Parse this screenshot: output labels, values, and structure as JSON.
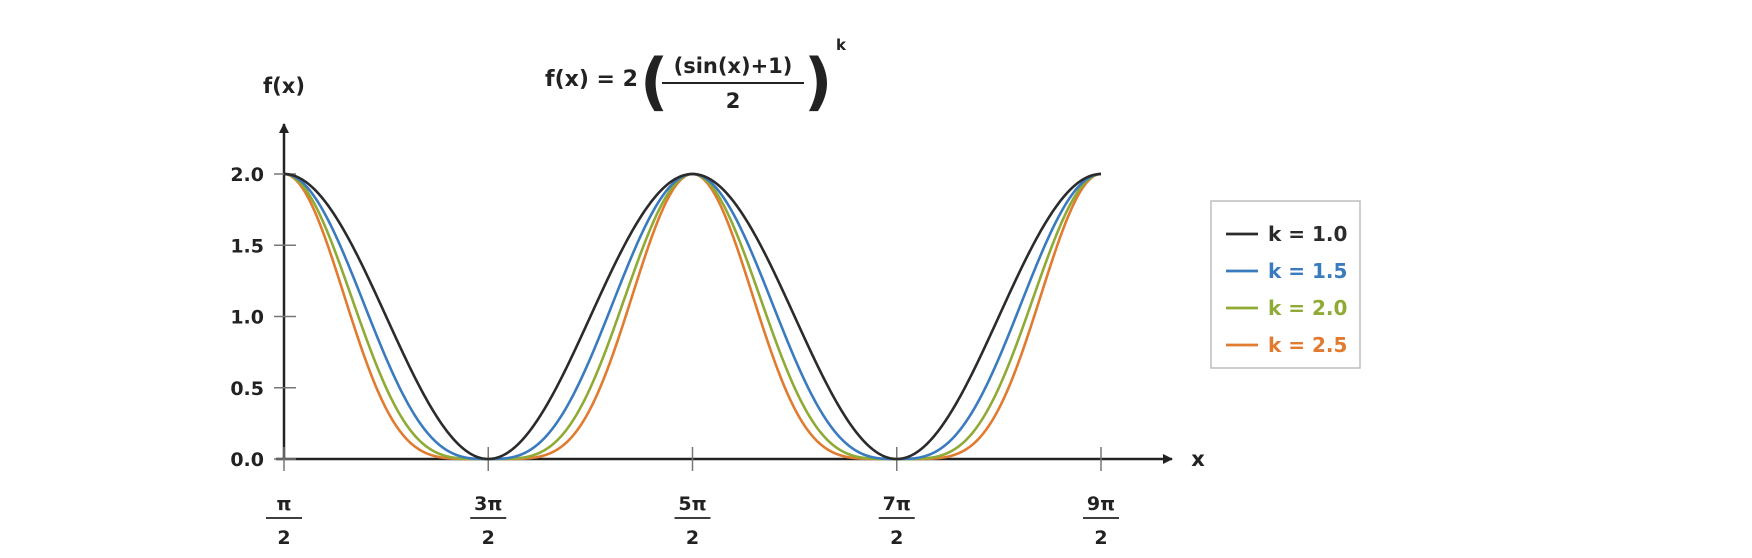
{
  "chart_data": {
    "type": "line",
    "title": {
      "lhs": "f(x) = 2",
      "numerator": "(sin(x)+1)",
      "denominator": "2",
      "exponent": "k"
    },
    "ylabel": "f(x)",
    "xlabel": "x",
    "function": "2*((sin(x)+1)/2)^k",
    "xlim_in_pi": [
      0.5,
      4.5
    ],
    "ylim": [
      0,
      2
    ],
    "x_ticks": [
      {
        "value_in_pi": 0.5,
        "num": "π",
        "den": "2"
      },
      {
        "value_in_pi": 1.5,
        "num": "3π",
        "den": "2"
      },
      {
        "value_in_pi": 2.5,
        "num": "5π",
        "den": "2"
      },
      {
        "value_in_pi": 3.5,
        "num": "7π",
        "den": "2"
      },
      {
        "value_in_pi": 4.5,
        "num": "9π",
        "den": "2"
      }
    ],
    "y_ticks": [
      {
        "value": 0.0,
        "label": "0.0"
      },
      {
        "value": 0.5,
        "label": "0.5"
      },
      {
        "value": 1.0,
        "label": "1.0"
      },
      {
        "value": 1.5,
        "label": "1.5"
      },
      {
        "value": 2.0,
        "label": "2.0"
      }
    ],
    "series": [
      {
        "name": "k = 1.0",
        "k": 1.0,
        "color": "#2b2b2b"
      },
      {
        "name": "k = 1.5",
        "k": 1.5,
        "color": "#3a7bbf"
      },
      {
        "name": "k = 2.0",
        "k": 2.0,
        "color": "#8faa35"
      },
      {
        "name": "k = 2.5",
        "k": 2.5,
        "color": "#e07b2f"
      }
    ],
    "legend_position": "right",
    "grid": false
  }
}
